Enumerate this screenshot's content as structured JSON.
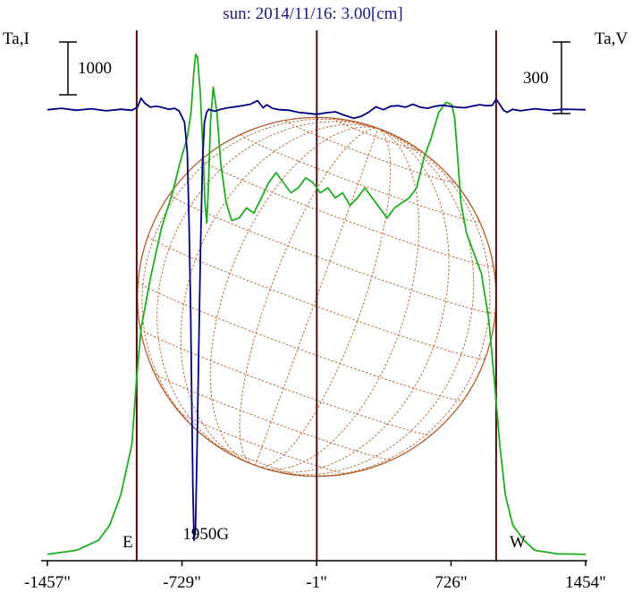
{
  "chart_data": {
    "type": "line",
    "title": "sun: 2014/11/16: 3.00[cm]",
    "left_axis_label": "Ta,I",
    "right_axis_label": "Ta,V",
    "left_scale_bar": {
      "label": "1000",
      "value": 1000
    },
    "right_scale_bar": {
      "label": "300",
      "value": 300
    },
    "x_ticks": [
      -1457,
      -729,
      -1,
      726,
      1454
    ],
    "x_tick_labels": [
      "-1457\"",
      "-729\"",
      "-1\"",
      "726\"",
      "1454\""
    ],
    "xlim": [
      -1457,
      1454
    ],
    "limb_markers": [
      {
        "label": "E",
        "x": -974
      },
      {
        "label": "W",
        "x": 970
      }
    ],
    "annotation": {
      "text": "1950G",
      "x": -600,
      "y": 3.2
    },
    "disk": {
      "radius_arcsec": 970,
      "grid": "heliographic"
    },
    "ylim": [
      0,
      100
    ],
    "series": [
      {
        "id": "stokes-i",
        "color": "#22aa22",
        "x": [
          -1457,
          -1300,
          -1180,
          -1120,
          -1060,
          -1000,
          -975,
          -950,
          -900,
          -840,
          -780,
          -740,
          -700,
          -680,
          -665,
          -655,
          -645,
          -630,
          -615,
          -605,
          -595,
          -585,
          -575,
          -560,
          -540,
          -520,
          -490,
          -460,
          -420,
          -380,
          -340,
          -300,
          -260,
          -220,
          -180,
          -140,
          -100,
          -60,
          -20,
          20,
          60,
          100,
          140,
          180,
          220,
          260,
          300,
          340,
          380,
          420,
          460,
          500,
          540,
          580,
          620,
          660,
          700,
          730,
          745,
          760,
          780,
          810,
          850,
          890,
          930,
          960,
          990,
          1020,
          1060,
          1120,
          1180,
          1300,
          1454
        ],
        "values": [
          0.2,
          1.0,
          3.0,
          6.0,
          12.0,
          22.0,
          35.0,
          45.0,
          55.0,
          65.0,
          72.0,
          78.0,
          83.0,
          88.0,
          96.0,
          99.5,
          99.0,
          92.0,
          80.0,
          70.0,
          66.0,
          74.0,
          86.0,
          93.0,
          88.0,
          78.0,
          70.0,
          66.5,
          67.0,
          69.0,
          68.0,
          71.0,
          74.0,
          76.0,
          74.0,
          72.0,
          73.0,
          75.0,
          74.0,
          72.0,
          73.0,
          71.0,
          72.0,
          69.5,
          71.0,
          73.0,
          71.0,
          69.0,
          67.0,
          69.0,
          70.0,
          71.0,
          73.0,
          79.0,
          83.0,
          88.0,
          90.0,
          89.5,
          87.0,
          80.0,
          70.0,
          64.0,
          60.0,
          56.0,
          47.0,
          35.0,
          22.0,
          12.0,
          6.0,
          3.0,
          1.0,
          0.3,
          0.2
        ]
      },
      {
        "id": "stokes-v",
        "color": "#000080",
        "x": [
          -1457,
          -1380,
          -1300,
          -1220,
          -1140,
          -1060,
          -1000,
          -970,
          -950,
          -930,
          -900,
          -870,
          -840,
          -800,
          -770,
          -745,
          -730,
          -715,
          -700,
          -690,
          -682,
          -676,
          -670,
          -664,
          -656,
          -648,
          -638,
          -628,
          -618,
          -608,
          -596,
          -584,
          -570,
          -550,
          -520,
          -480,
          -420,
          -360,
          -320,
          -290,
          -270,
          -240,
          -200,
          -150,
          -100,
          -50,
          -1,
          50,
          100,
          150,
          200,
          240,
          280,
          320,
          360,
          400,
          440,
          480,
          520,
          560,
          600,
          640,
          680,
          720,
          760,
          800,
          840,
          880,
          920,
          950,
          970,
          990,
          1010,
          1030,
          1060,
          1100,
          1180,
          1260,
          1340,
          1454
        ],
        "values": [
          88.5,
          88.8,
          88.4,
          88.7,
          88.3,
          88.6,
          88.4,
          89.0,
          90.8,
          89.8,
          89.0,
          89.2,
          89.0,
          88.6,
          88.8,
          88.3,
          87.2,
          86.0,
          80.0,
          65.0,
          48.0,
          30.0,
          13.0,
          3.0,
          5.0,
          20.0,
          42.0,
          62.0,
          78.0,
          86.0,
          88.0,
          88.6,
          88.4,
          88.2,
          88.6,
          88.9,
          89.2,
          89.6,
          90.3,
          88.9,
          89.5,
          88.8,
          88.5,
          88.4,
          88.0,
          87.8,
          87.6,
          87.9,
          88.1,
          87.4,
          86.8,
          87.2,
          88.0,
          89.1,
          88.5,
          89.2,
          89.3,
          89.0,
          89.6,
          89.0,
          88.8,
          89.2,
          89.4,
          89.2,
          89.0,
          88.9,
          89.2,
          89.5,
          89.3,
          89.4,
          90.6,
          89.6,
          88.4,
          88.0,
          88.6,
          88.3,
          88.7,
          88.4,
          88.6,
          88.5
        ]
      }
    ],
    "colors": {
      "background": "#ffffff",
      "disk": "#b35a2a",
      "guide_lines": "#4a0f0f",
      "title": "#1a1a80"
    }
  }
}
